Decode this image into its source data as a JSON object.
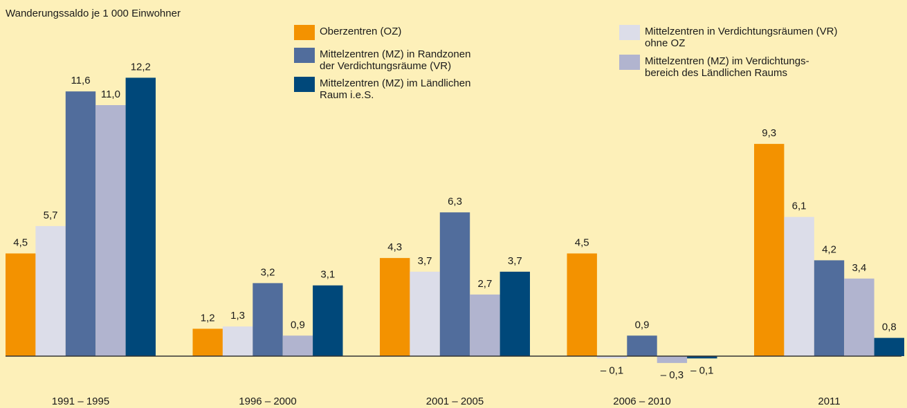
{
  "chart_data": {
    "type": "bar",
    "y_label": "Wanderungssaldo je 1 000 Einwohner",
    "categories": [
      "1991 – 1995",
      "1996 – 2000",
      "2001 – 2005",
      "2006 – 2010",
      "2011"
    ],
    "series": [
      {
        "name": "Oberzentren (OZ)",
        "color": "#f39200",
        "values": [
          4.5,
          1.2,
          4.3,
          4.5,
          9.3
        ],
        "value_labels": [
          "4,5",
          "1,2",
          "4,3",
          "4,5",
          "9,3"
        ]
      },
      {
        "name": "Mittelzentren in Verdichtungsräumen (VR)\nohne OZ",
        "color": "#dcdde9",
        "values": [
          5.7,
          1.3,
          3.7,
          -0.1,
          6.1
        ],
        "value_labels": [
          "5,7",
          "1,3",
          "3,7",
          "– 0,1",
          "6,1"
        ]
      },
      {
        "name": "Mittelzentren (MZ) in Randzonen\nder Verdichtungsräume (VR)",
        "color": "#516d9c",
        "values": [
          11.6,
          3.2,
          6.3,
          0.9,
          4.2
        ],
        "value_labels": [
          "11,6",
          "3,2",
          "6,3",
          "0,9",
          "4,2"
        ]
      },
      {
        "name": "Mittelzentren (MZ) im Verdichtungs-\nbereich des Ländlichen Raums",
        "color": "#b1b4cf",
        "values": [
          11.0,
          0.9,
          2.7,
          -0.3,
          3.4
        ],
        "value_labels": [
          "11,0",
          "0,9",
          "2,7",
          "– 0,3",
          "3,4"
        ]
      },
      {
        "name": "Mittelzentren (MZ) im Ländlichen\nRaum i.e.S.",
        "color": "#00487a",
        "values": [
          12.2,
          3.1,
          3.7,
          -0.1,
          0.8
        ],
        "value_labels": [
          "12,2",
          "3,1",
          "3,7",
          "– 0,1",
          "0,8"
        ]
      }
    ],
    "ylim": [
      -1,
      13.5
    ]
  }
}
